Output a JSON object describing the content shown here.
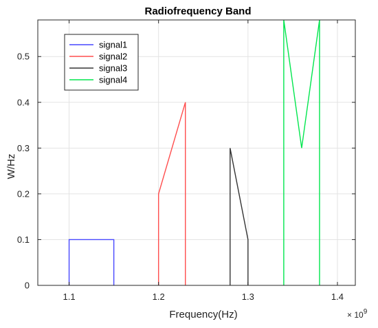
{
  "chart_data": {
    "type": "line",
    "title": "Radiofrequency Band",
    "xlabel": "Frequency(Hz)",
    "ylabel": "W/Hz",
    "x_exponent_label": "× 10",
    "x_exponent_power": "9",
    "xlim": [
      1.065,
      1.42
    ],
    "ylim": [
      0,
      0.58
    ],
    "x_ticks": [
      1.1,
      1.2,
      1.3,
      1.4
    ],
    "x_tick_labels": [
      "1.1",
      "1.2",
      "1.3",
      "1.4"
    ],
    "y_ticks": [
      0,
      0.1,
      0.2,
      0.3,
      0.4,
      0.5
    ],
    "y_tick_labels": [
      "0",
      "0.1",
      "0.2",
      "0.3",
      "0.4",
      "0.5"
    ],
    "grid": true,
    "legend_position": "top-left",
    "series": [
      {
        "name": "signal1",
        "color": "#4747ff",
        "x": [
          1.1,
          1.1,
          1.15,
          1.15
        ],
        "y": [
          0,
          0.1,
          0.1,
          0
        ]
      },
      {
        "name": "signal2",
        "color": "#ff4d4d",
        "x": [
          1.2,
          1.2,
          1.23,
          1.23
        ],
        "y": [
          0,
          0.2,
          0.4,
          0
        ]
      },
      {
        "name": "signal3",
        "color": "#333333",
        "x": [
          1.28,
          1.28,
          1.3,
          1.3
        ],
        "y": [
          0,
          0.3,
          0.1,
          0
        ]
      },
      {
        "name": "signal4",
        "color": "#00e64d",
        "x": [
          1.34,
          1.34,
          1.36,
          1.38,
          1.38
        ],
        "y": [
          0,
          0.58,
          0.3,
          0.58,
          0
        ]
      }
    ]
  }
}
